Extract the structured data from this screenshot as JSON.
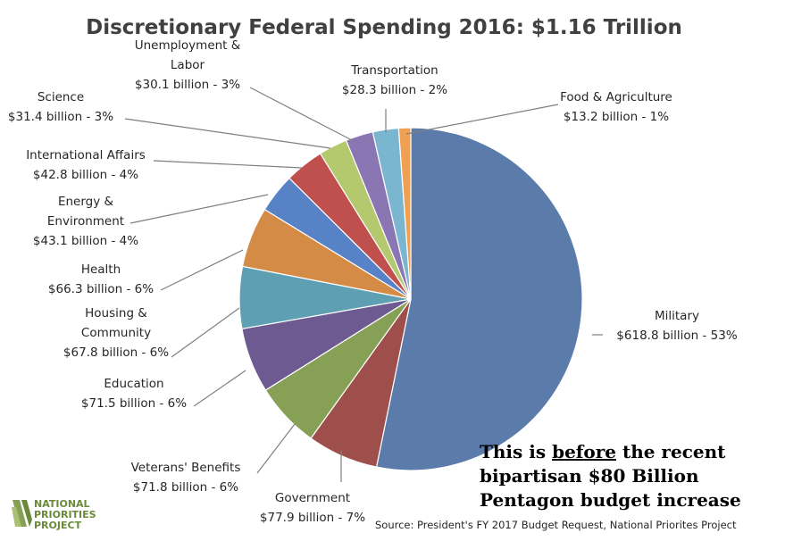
{
  "chart_data": {
    "type": "pie",
    "title": "Discretionary Federal Spending 2016: $1.16 Trillion",
    "slices": [
      {
        "name": "Military",
        "value": 618.8,
        "label": "$618.8 billion - 53%",
        "color": "#5b7bab"
      },
      {
        "name": "Government",
        "value": 77.9,
        "label": "$77.9 billion - 7%",
        "color": "#9e4f4b"
      },
      {
        "name": "Veterans' Benefits",
        "value": 71.8,
        "label": "$71.8 billion - 6%",
        "color": "#86a055"
      },
      {
        "name": "Education",
        "value": 71.5,
        "label": "$71.5 billion - 6%",
        "color": "#6c5a91"
      },
      {
        "name": "Housing & Community",
        "value": 67.8,
        "label": "$67.8 billion - 6%",
        "color": "#5e9fb3"
      },
      {
        "name": "Health",
        "value": 66.3,
        "label": "$66.3 billion - 6%",
        "color": "#d48b46"
      },
      {
        "name": "Energy & Environment",
        "value": 43.1,
        "label": "$43.1 billion - 4%",
        "color": "#5882c6"
      },
      {
        "name": "International Affairs",
        "value": 42.8,
        "label": "$42.8 billion - 4%",
        "color": "#c0504d"
      },
      {
        "name": "Science",
        "value": 31.4,
        "label": "$31.4 billion - 3%",
        "color": "#b4c86e"
      },
      {
        "name": "Unemployment & Labor",
        "value": 30.1,
        "label": "$30.1 billion - 3%",
        "color": "#8b76b4"
      },
      {
        "name": "Transportation",
        "value": 28.3,
        "label": "$28.3 billion - 2%",
        "color": "#7bb6d1"
      },
      {
        "name": "Food & Agriculture",
        "value": 13.2,
        "label": "$13.2 billion - 1%",
        "color": "#f0a053"
      }
    ],
    "label_lines": {
      "Military": [
        "Military"
      ],
      "Government": [
        "Government"
      ],
      "Veterans' Benefits": [
        "Veterans' Benefits"
      ],
      "Education": [
        "Education"
      ],
      "Housing & Community": [
        "Housing &",
        "Community"
      ],
      "Health": [
        "Health"
      ],
      "Energy & Environment": [
        "Energy &",
        "Environment"
      ],
      "International Affairs": [
        "International Affairs"
      ],
      "Science": [
        "Science"
      ],
      "Unemployment & Labor": [
        "Unemployment  &",
        "Labor"
      ],
      "Transportation": [
        "Transportation"
      ],
      "Food & Agriculture": [
        "Food & Agriculture"
      ]
    },
    "legend": "none"
  },
  "source": "Source: President's FY 2017 Budget Request, National Priorites Project",
  "note": {
    "line1_pre": "This is ",
    "line1_u": "before",
    "line1_post": " the recent",
    "line2": "bipartisan $80 Billion",
    "line3": "Pentagon budget increase"
  },
  "logo": {
    "line1": "NATIONAL",
    "line2": "PRIORITIES",
    "line3": "PROJECT"
  }
}
